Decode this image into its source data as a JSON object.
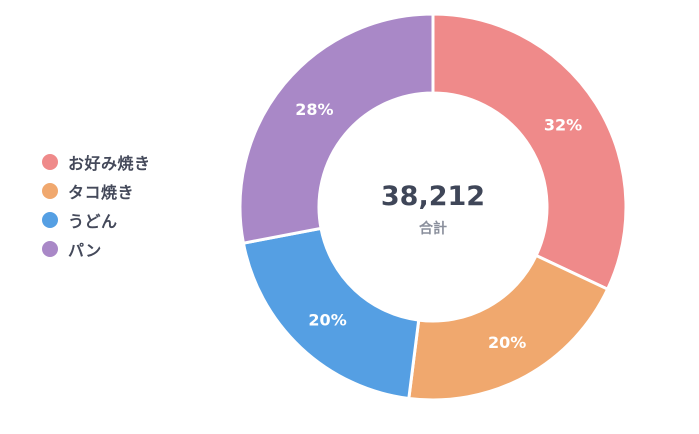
{
  "chart_data": {
    "type": "pie",
    "style": "donut",
    "categories": [
      "お好み焼き",
      "タコ焼き",
      "うどん",
      "パン"
    ],
    "values": [
      32,
      20,
      20,
      28
    ],
    "value_labels": [
      "32%",
      "20%",
      "20%",
      "28%"
    ],
    "colors": [
      "#ef8a8a",
      "#f0a86e",
      "#559fe3",
      "#a988c7"
    ],
    "center_value": "38,212",
    "center_label": "合計",
    "legend_position": "left"
  },
  "legend": {
    "items": [
      {
        "label": "お好み焼き",
        "color": "#ef8a8a"
      },
      {
        "label": "タコ焼き",
        "color": "#f0a86e"
      },
      {
        "label": "うどん",
        "color": "#559fe3"
      },
      {
        "label": "パン",
        "color": "#a988c7"
      }
    ]
  }
}
